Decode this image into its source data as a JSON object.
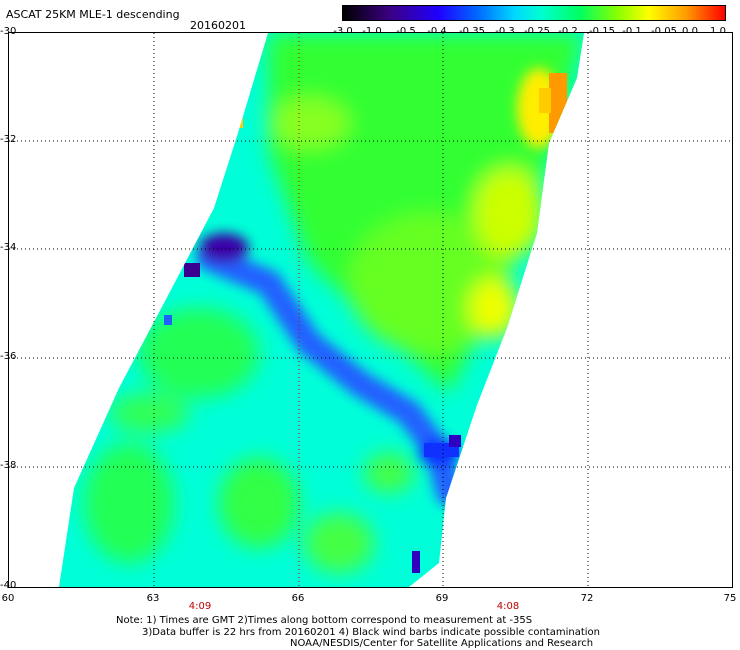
{
  "header": {
    "title": "ASCAT 25KM MLE-1 descending",
    "date": "20160201"
  },
  "colorbar": {
    "labels": [
      "-3.0",
      "-1.0",
      "-0.5",
      "-0.4",
      "-0.35",
      "-0.3",
      "-0.25",
      "-0.2",
      "-0.15",
      "-0.1",
      "-0.05",
      "0.0",
      "1.0"
    ]
  },
  "axes": {
    "y_ticks": [
      "-30",
      "-32",
      "-34",
      "-36",
      "-38",
      "-40"
    ],
    "x_ticks": [
      "60",
      "63",
      "66",
      "69",
      "72",
      "75"
    ],
    "time_labels": [
      "4:09",
      "4:08"
    ]
  },
  "notes": {
    "line1": "Note: 1) Times are GMT 2)Times along bottom correspond to measurement at -35S",
    "line2": "3)Data buffer is 22 hrs from 20160201 4) Black wind barbs indicate possible contamination",
    "line3": "NOAA/NESDIS/Center for Satellite Applications and Research"
  },
  "colors": {
    "swath_green": "#22ff44",
    "swath_cyan": "#00ffd8",
    "low_blue": "#2040ff",
    "yellow": "#ffff00",
    "orange": "#ff9900"
  }
}
